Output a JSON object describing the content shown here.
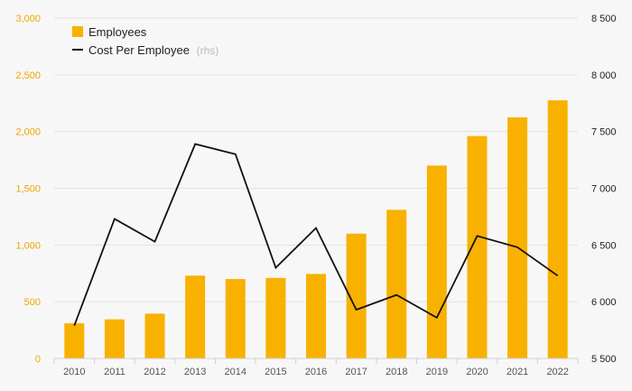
{
  "chart_data": {
    "type": "bar+line",
    "title": "",
    "categories": [
      "2010",
      "2011",
      "2012",
      "2013",
      "2014",
      "2015",
      "2016",
      "2017",
      "2018",
      "2019",
      "2020",
      "2021",
      "2022"
    ],
    "series": [
      {
        "name": "Employees",
        "type": "bar",
        "axis": "left",
        "values": [
          310,
          345,
          395,
          730,
          700,
          710,
          745,
          1100,
          1310,
          1700,
          1960,
          2125,
          2275
        ]
      },
      {
        "name": "Cost Per Employee",
        "type": "line",
        "axis": "right",
        "values": [
          5790,
          6730,
          6530,
          7390,
          7300,
          6300,
          6650,
          5930,
          6060,
          5860,
          6580,
          6480,
          6230
        ]
      }
    ],
    "left_axis": {
      "ylim": [
        0,
        3000
      ],
      "ticks": [
        0,
        500,
        1000,
        1500,
        2000,
        2500,
        3000
      ],
      "tick_labels": [
        "0",
        "500",
        "1,000",
        "1,500",
        "2,000",
        "2,500",
        "3,000"
      ]
    },
    "right_axis": {
      "ylim": [
        5500,
        8500
      ],
      "ticks": [
        5500,
        6000,
        6500,
        7000,
        7500,
        8000,
        8500
      ],
      "tick_labels": [
        "5 500",
        "6 000",
        "6 500",
        "7 000",
        "7 500",
        "8 000",
        "8 500"
      ]
    },
    "grid": true,
    "legend": {
      "position": "top-left",
      "entries": [
        {
          "label": "Employees",
          "suffix": ""
        },
        {
          "label": "Cost Per Employee",
          "suffix": "(rhs)"
        }
      ]
    },
    "colors": {
      "bar": "#f9b100",
      "line": "#111111",
      "left_ticks": "#f0a500",
      "grid": "#e2e2e2"
    }
  }
}
